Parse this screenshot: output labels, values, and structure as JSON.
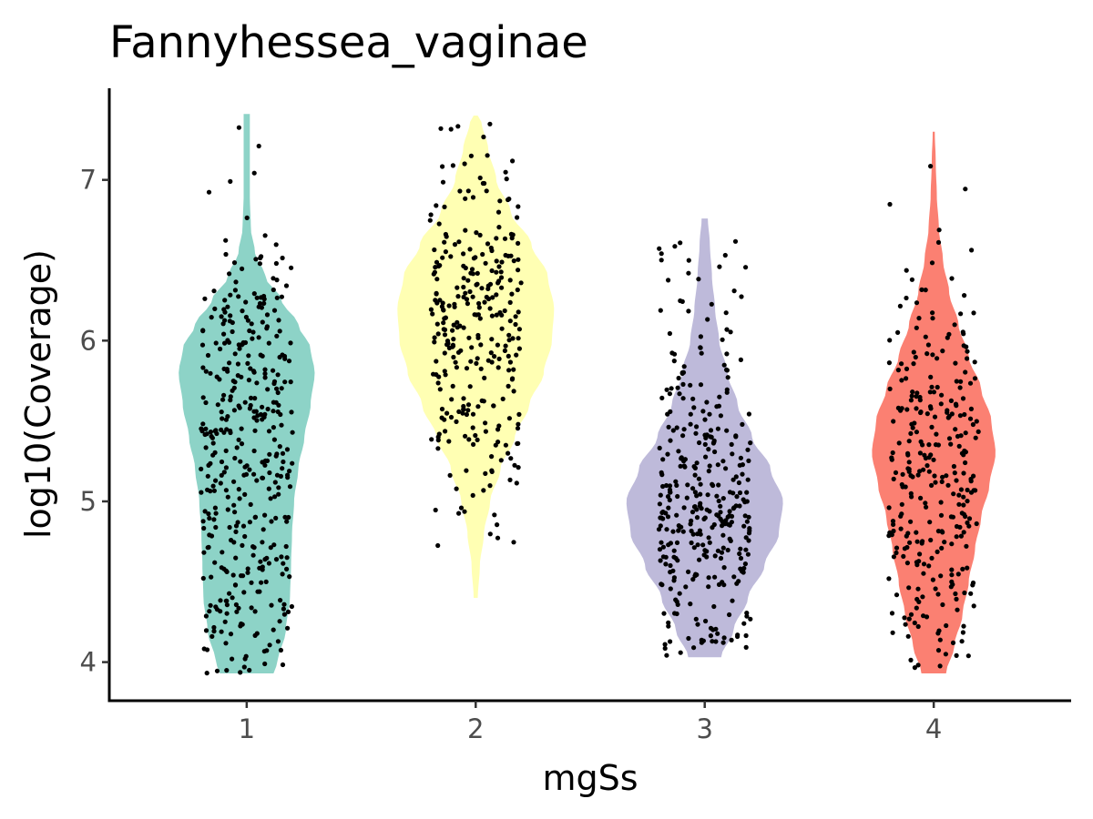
{
  "chart_data": {
    "type": "violin",
    "title": "Fannyhessea_vaginae",
    "xlabel": "mgSs",
    "ylabel": "log10(Coverage)",
    "categories": [
      "1",
      "2",
      "3",
      "4"
    ],
    "y_ticks": [
      "4",
      "5",
      "6",
      "7"
    ],
    "ylim": [
      3.76,
      7.57
    ],
    "xlim": [
      0.4,
      4.6
    ],
    "grid": false,
    "legend": "none",
    "groups": [
      {
        "name": "1",
        "color": "#8DD3C7",
        "n_points": 400,
        "y_min": 3.93,
        "y_max": 7.41,
        "density": [
          [
            3.93,
            0.26
          ],
          [
            4.0,
            0.3
          ],
          [
            4.2,
            0.38
          ],
          [
            4.4,
            0.42
          ],
          [
            4.6,
            0.43
          ],
          [
            4.8,
            0.44
          ],
          [
            5.0,
            0.46
          ],
          [
            5.2,
            0.5
          ],
          [
            5.4,
            0.56
          ],
          [
            5.6,
            0.62
          ],
          [
            5.8,
            0.66
          ],
          [
            5.95,
            0.62
          ],
          [
            6.1,
            0.5
          ],
          [
            6.25,
            0.34
          ],
          [
            6.4,
            0.18
          ],
          [
            6.55,
            0.08
          ],
          [
            6.7,
            0.04
          ],
          [
            6.9,
            0.03
          ],
          [
            7.1,
            0.03
          ],
          [
            7.3,
            0.03
          ],
          [
            7.41,
            0.03
          ]
        ]
      },
      {
        "name": "2",
        "color": "#FFFFB3",
        "n_points": 300,
        "y_min": 4.4,
        "y_max": 7.4,
        "density": [
          [
            4.4,
            0.02
          ],
          [
            4.6,
            0.04
          ],
          [
            4.8,
            0.08
          ],
          [
            5.0,
            0.14
          ],
          [
            5.2,
            0.24
          ],
          [
            5.4,
            0.38
          ],
          [
            5.6,
            0.52
          ],
          [
            5.8,
            0.66
          ],
          [
            6.0,
            0.74
          ],
          [
            6.2,
            0.76
          ],
          [
            6.4,
            0.7
          ],
          [
            6.6,
            0.54
          ],
          [
            6.8,
            0.34
          ],
          [
            7.0,
            0.2
          ],
          [
            7.2,
            0.12
          ],
          [
            7.35,
            0.06
          ],
          [
            7.4,
            0.02
          ]
        ]
      },
      {
        "name": "3",
        "color": "#BEBADA",
        "n_points": 350,
        "y_min": 4.03,
        "y_max": 6.76,
        "density": [
          [
            4.03,
            0.16
          ],
          [
            4.2,
            0.28
          ],
          [
            4.4,
            0.42
          ],
          [
            4.6,
            0.58
          ],
          [
            4.8,
            0.72
          ],
          [
            5.0,
            0.76
          ],
          [
            5.2,
            0.64
          ],
          [
            5.4,
            0.46
          ],
          [
            5.6,
            0.32
          ],
          [
            5.8,
            0.22
          ],
          [
            6.0,
            0.14
          ],
          [
            6.2,
            0.1
          ],
          [
            6.4,
            0.07
          ],
          [
            6.6,
            0.05
          ],
          [
            6.76,
            0.03
          ]
        ]
      },
      {
        "name": "4",
        "color": "#FB8072",
        "n_points": 300,
        "y_min": 3.93,
        "y_max": 7.3,
        "density": [
          [
            3.93,
            0.12
          ],
          [
            4.1,
            0.2
          ],
          [
            4.3,
            0.28
          ],
          [
            4.5,
            0.34
          ],
          [
            4.7,
            0.4
          ],
          [
            4.9,
            0.46
          ],
          [
            5.1,
            0.54
          ],
          [
            5.3,
            0.6
          ],
          [
            5.5,
            0.56
          ],
          [
            5.7,
            0.46
          ],
          [
            5.9,
            0.34
          ],
          [
            6.1,
            0.24
          ],
          [
            6.3,
            0.15
          ],
          [
            6.5,
            0.09
          ],
          [
            6.7,
            0.05
          ],
          [
            6.9,
            0.03
          ],
          [
            7.1,
            0.02
          ],
          [
            7.3,
            0.01
          ]
        ]
      }
    ]
  }
}
